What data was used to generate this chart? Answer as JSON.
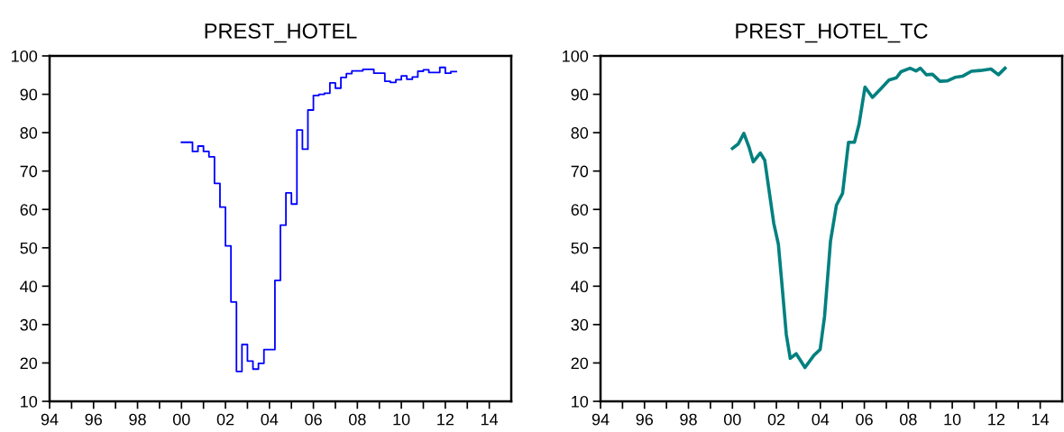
{
  "chart_data": [
    {
      "type": "step",
      "title": "PREST_HOTEL",
      "xlim": [
        1994,
        2015
      ],
      "ylim": [
        10,
        100
      ],
      "yticks": [
        10,
        20,
        30,
        40,
        50,
        60,
        70,
        80,
        90,
        100
      ],
      "xticks": [
        {
          "value": 1994,
          "label": "94"
        },
        {
          "value": 1995,
          "label": null
        },
        {
          "value": 1996,
          "label": "96"
        },
        {
          "value": 1997,
          "label": null
        },
        {
          "value": 1998,
          "label": "98"
        },
        {
          "value": 1999,
          "label": null
        },
        {
          "value": 2000,
          "label": "00"
        },
        {
          "value": 2001,
          "label": null
        },
        {
          "value": 2002,
          "label": "02"
        },
        {
          "value": 2003,
          "label": null
        },
        {
          "value": 2004,
          "label": "04"
        },
        {
          "value": 2005,
          "label": null
        },
        {
          "value": 2006,
          "label": "06"
        },
        {
          "value": 2007,
          "label": null
        },
        {
          "value": 2008,
          "label": "08"
        },
        {
          "value": 2009,
          "label": null
        },
        {
          "value": 2010,
          "label": "10"
        },
        {
          "value": 2011,
          "label": null
        },
        {
          "value": 2012,
          "label": "12"
        },
        {
          "value": 2013,
          "label": null
        },
        {
          "value": 2014,
          "label": "14"
        }
      ],
      "grid": false,
      "legend": false,
      "series": [
        {
          "color": "#0000ff",
          "x": [
            2000.0,
            2000.5,
            2000.75,
            2001.0,
            2001.25,
            2001.5,
            2001.75,
            2002.0,
            2002.25,
            2002.5,
            2002.75,
            2003.0,
            2003.25,
            2003.5,
            2003.75,
            2004.25,
            2004.5,
            2004.75,
            2005.0,
            2005.25,
            2005.5,
            2005.75,
            2006.0,
            2006.25,
            2006.5,
            2006.75,
            2007.0,
            2007.25,
            2007.5,
            2007.75,
            2008.25,
            2008.75,
            2009.25,
            2009.5,
            2009.75,
            2010.0,
            2010.25,
            2010.5,
            2010.75,
            2011.0,
            2011.25,
            2011.75,
            2012.0,
            2012.25,
            2012.5
          ],
          "values": [
            77.5,
            75.1,
            76.5,
            75.1,
            73.7,
            66.8,
            60.6,
            50.5,
            35.9,
            17.8,
            24.8,
            20.5,
            18.4,
            19.9,
            23.5,
            41.5,
            55.9,
            64.3,
            61.4,
            80.7,
            75.7,
            85.9,
            89.7,
            90.0,
            90.3,
            93.0,
            91.6,
            94.4,
            95.4,
            96.1,
            96.5,
            95.5,
            93.4,
            93.1,
            93.8,
            94.8,
            93.9,
            94.5,
            96.0,
            96.4,
            95.7,
            97.0,
            95.5,
            95.9,
            95.9
          ]
        }
      ]
    },
    {
      "type": "line",
      "title": "PREST_HOTEL_TC",
      "xlim": [
        1994,
        2015
      ],
      "ylim": [
        10,
        100
      ],
      "yticks": [
        10,
        20,
        30,
        40,
        50,
        60,
        70,
        80,
        90,
        100
      ],
      "xticks": [
        {
          "value": 1994,
          "label": "94"
        },
        {
          "value": 1995,
          "label": null
        },
        {
          "value": 1996,
          "label": "96"
        },
        {
          "value": 1997,
          "label": null
        },
        {
          "value": 1998,
          "label": "98"
        },
        {
          "value": 1999,
          "label": null
        },
        {
          "value": 2000,
          "label": "00"
        },
        {
          "value": 2001,
          "label": null
        },
        {
          "value": 2002,
          "label": "02"
        },
        {
          "value": 2003,
          "label": null
        },
        {
          "value": 2004,
          "label": "04"
        },
        {
          "value": 2005,
          "label": null
        },
        {
          "value": 2006,
          "label": "06"
        },
        {
          "value": 2007,
          "label": null
        },
        {
          "value": 2008,
          "label": "08"
        },
        {
          "value": 2009,
          "label": null
        },
        {
          "value": 2010,
          "label": "10"
        },
        {
          "value": 2011,
          "label": null
        },
        {
          "value": 2012,
          "label": "12"
        },
        {
          "value": 2013,
          "label": null
        },
        {
          "value": 2014,
          "label": "14"
        }
      ],
      "grid": false,
      "legend": false,
      "series": [
        {
          "color": "#008080",
          "x": [
            2000.0,
            2000.27,
            2000.52,
            2000.75,
            2000.95,
            2001.27,
            2001.47,
            2001.88,
            2002.09,
            2002.26,
            2002.45,
            2002.63,
            2002.9,
            2003.3,
            2003.71,
            2003.99,
            2004.19,
            2004.46,
            2004.73,
            2005.01,
            2005.28,
            2005.55,
            2005.76,
            2006.03,
            2006.37,
            2006.71,
            2007.12,
            2007.46,
            2007.67,
            2008.08,
            2008.35,
            2008.55,
            2008.82,
            2009.1,
            2009.44,
            2009.78,
            2010.12,
            2010.46,
            2010.87,
            2011.28,
            2011.76,
            2012.1,
            2012.4
          ],
          "values": [
            75.9,
            77.1,
            79.8,
            76.3,
            72.4,
            74.7,
            72.8,
            56.4,
            50.9,
            40.0,
            27.4,
            21.2,
            22.4,
            18.8,
            22.0,
            23.5,
            32.1,
            51.7,
            61.1,
            64.2,
            77.5,
            77.5,
            82.2,
            91.9,
            89.2,
            91.2,
            93.7,
            94.3,
            95.9,
            96.8,
            96.1,
            96.8,
            95.1,
            95.2,
            93.4,
            93.5,
            94.4,
            94.7,
            96.0,
            96.2,
            96.6,
            95.1,
            96.8
          ]
        }
      ]
    }
  ]
}
